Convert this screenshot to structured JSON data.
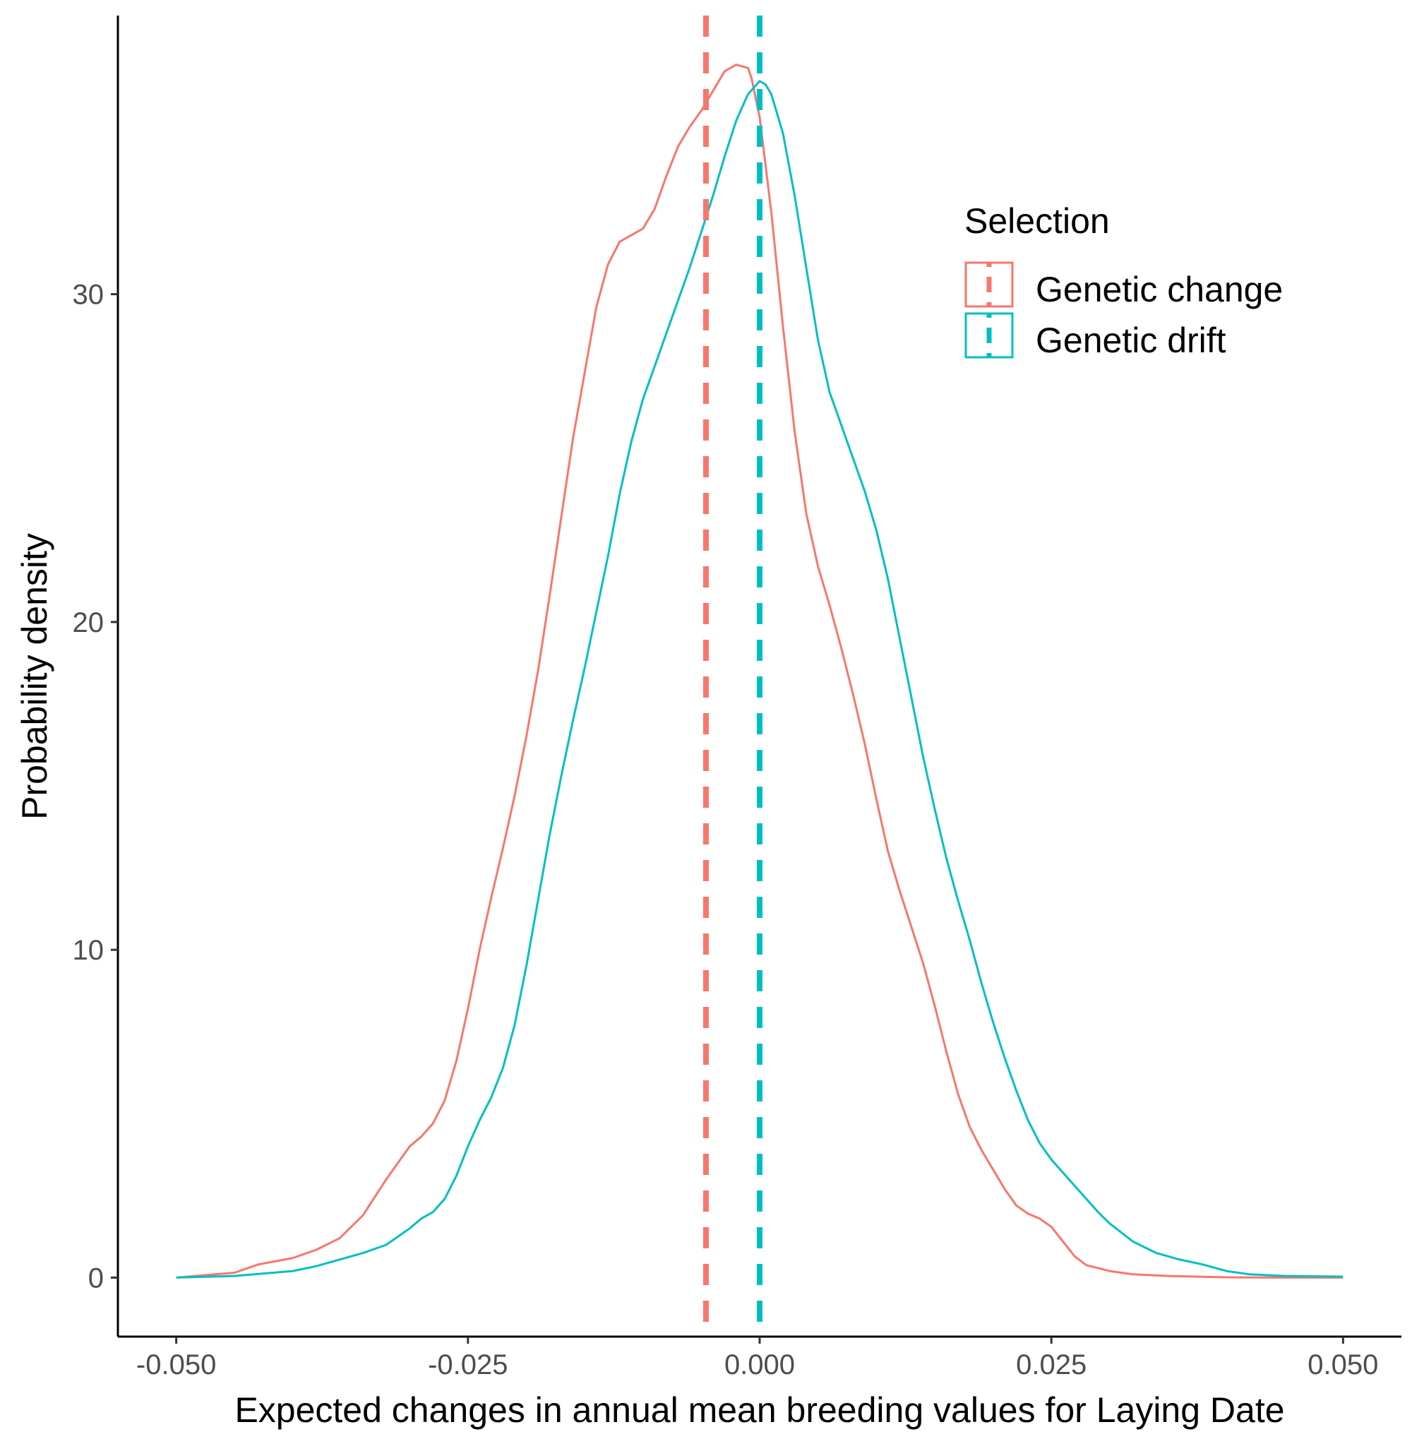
{
  "chart_data": {
    "type": "line",
    "xlabel": "Expected changes in annual mean breeding values for Laying Date",
    "ylabel": "Probability density",
    "xlim": [
      -0.055,
      0.055
    ],
    "ylim": [
      -1.8,
      38.5
    ],
    "x_ticks": [
      -0.05,
      -0.025,
      0,
      0.025,
      0.05
    ],
    "x_tick_labels": [
      "-0.050",
      "-0.025",
      "0.000",
      "0.025",
      "0.050"
    ],
    "y_ticks": [
      0,
      10,
      20,
      30
    ],
    "y_tick_labels": [
      "0",
      "10",
      "20",
      "30"
    ],
    "grid": false,
    "legend": {
      "title": "Selection",
      "position": "top-right"
    },
    "series": [
      {
        "name": "Genetic change",
        "color": "#F8766D",
        "mean": -0.0046,
        "x": [
          -0.05,
          -0.045,
          -0.043,
          -0.04,
          -0.038,
          -0.036,
          -0.034,
          -0.032,
          -0.031,
          -0.03,
          -0.029,
          -0.028,
          -0.027,
          -0.026,
          -0.025,
          -0.024,
          -0.023,
          -0.022,
          -0.021,
          -0.02,
          -0.019,
          -0.018,
          -0.017,
          -0.016,
          -0.015,
          -0.014,
          -0.013,
          -0.012,
          -0.011,
          -0.01,
          -0.009,
          -0.008,
          -0.007,
          -0.006,
          -0.005,
          -0.004,
          -0.003,
          -0.002,
          -0.001,
          -0.0007,
          0,
          0.001,
          0.002,
          0.003,
          0.004,
          0.005,
          0.006,
          0.007,
          0.008,
          0.009,
          0.01,
          0.011,
          0.012,
          0.013,
          0.014,
          0.015,
          0.016,
          0.017,
          0.018,
          0.019,
          0.02,
          0.021,
          0.022,
          0.023,
          0.024,
          0.025,
          0.026,
          0.027,
          0.028,
          0.03,
          0.032,
          0.035,
          0.04,
          0.045,
          0.05
        ],
        "y": [
          0,
          0.15,
          0.4,
          0.6,
          0.85,
          1.2,
          1.9,
          3.0,
          3.5,
          4.0,
          4.3,
          4.7,
          5.4,
          6.6,
          8.2,
          10.0,
          11.6,
          13.1,
          14.7,
          16.5,
          18.5,
          20.8,
          23.2,
          25.6,
          27.6,
          29.6,
          30.9,
          31.6,
          31.8,
          32.0,
          32.6,
          33.6,
          34.5,
          35.1,
          35.6,
          36.2,
          36.8,
          37.0,
          36.9,
          36.6,
          35.4,
          32.5,
          29.0,
          25.8,
          23.3,
          21.7,
          20.5,
          19.2,
          17.8,
          16.3,
          14.6,
          13.0,
          11.8,
          10.7,
          9.6,
          8.3,
          6.9,
          5.6,
          4.6,
          3.9,
          3.3,
          2.7,
          2.2,
          1.95,
          1.8,
          1.55,
          1.1,
          0.65,
          0.38,
          0.2,
          0.1,
          0.05,
          0.01,
          0,
          0
        ]
      },
      {
        "name": "Genetic drift",
        "color": "#00BFC4",
        "mean": 0.0,
        "x": [
          -0.05,
          -0.045,
          -0.04,
          -0.038,
          -0.036,
          -0.034,
          -0.032,
          -0.03,
          -0.029,
          -0.028,
          -0.027,
          -0.026,
          -0.025,
          -0.024,
          -0.023,
          -0.022,
          -0.021,
          -0.02,
          -0.019,
          -0.018,
          -0.017,
          -0.016,
          -0.015,
          -0.014,
          -0.013,
          -0.012,
          -0.011,
          -0.01,
          -0.009,
          -0.008,
          -0.007,
          -0.006,
          -0.005,
          -0.004,
          -0.003,
          -0.002,
          -0.001,
          0,
          0.0005,
          0.001,
          0.002,
          0.003,
          0.004,
          0.005,
          0.006,
          0.007,
          0.008,
          0.009,
          0.01,
          0.011,
          0.012,
          0.013,
          0.014,
          0.015,
          0.016,
          0.017,
          0.018,
          0.019,
          0.02,
          0.021,
          0.022,
          0.023,
          0.024,
          0.025,
          0.026,
          0.027,
          0.028,
          0.029,
          0.03,
          0.032,
          0.034,
          0.036,
          0.038,
          0.04,
          0.042,
          0.045,
          0.05
        ],
        "y": [
          0,
          0.05,
          0.2,
          0.35,
          0.55,
          0.75,
          1.0,
          1.5,
          1.8,
          2.0,
          2.4,
          3.1,
          4.0,
          4.8,
          5.5,
          6.4,
          7.7,
          9.5,
          11.5,
          13.5,
          15.3,
          17.0,
          18.6,
          20.3,
          22.0,
          23.9,
          25.5,
          26.8,
          27.8,
          28.8,
          29.8,
          30.8,
          31.9,
          33.0,
          34.2,
          35.3,
          36.1,
          36.5,
          36.4,
          36.1,
          34.9,
          33.0,
          30.8,
          28.6,
          27.0,
          26.0,
          25.0,
          24.0,
          22.8,
          21.3,
          19.5,
          17.7,
          15.9,
          14.3,
          12.8,
          11.5,
          10.3,
          9.0,
          7.8,
          6.7,
          5.7,
          4.8,
          4.1,
          3.6,
          3.2,
          2.8,
          2.4,
          2.0,
          1.65,
          1.1,
          0.75,
          0.55,
          0.4,
          0.2,
          0.1,
          0.05,
          0.03
        ]
      }
    ]
  }
}
